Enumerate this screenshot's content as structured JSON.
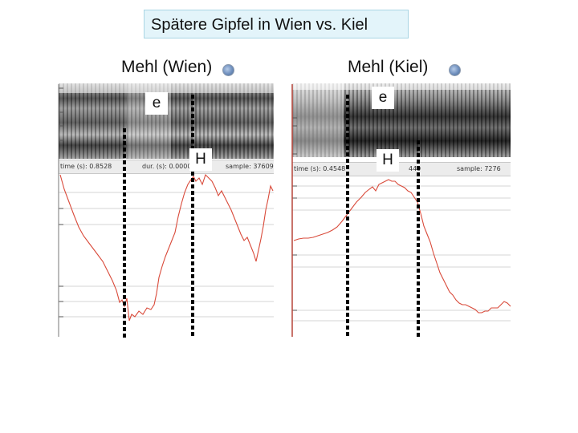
{
  "title": "Spätere Gipfel in Wien vs. Kiel",
  "panels": {
    "wien": {
      "label": "Mehl (Wien)",
      "info": {
        "time": "time (s):  0.8528",
        "dur": "dur. (s):  0.0000",
        "sample": "sample:  37609"
      },
      "segment_e": "e",
      "segment_h": "H",
      "speaker_icon": "speaker-icon"
    },
    "kiel": {
      "label": "Mehl (Kiel)",
      "info": {
        "time": "time (s):  0.4548",
        "dur": "449",
        "sample": "sample:  7276"
      },
      "segment_e": "e",
      "segment_h": "H",
      "speaker_icon": "speaker-icon"
    }
  },
  "colors": {
    "pitch_track": "#d94a3a",
    "marker_line": "#000000",
    "title_bg": "#e3f4fa",
    "grid": "#d0d0d0"
  }
}
